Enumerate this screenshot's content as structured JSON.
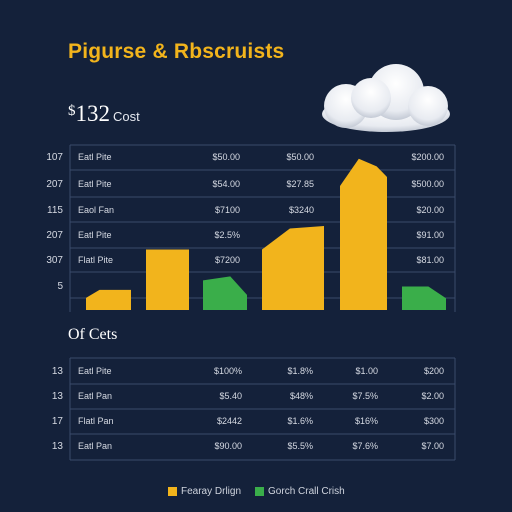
{
  "title": "Pigurse & Rbscruists",
  "cost": {
    "value": "132",
    "currency": "$",
    "label": "Cost"
  },
  "sub_title": "Of Cets",
  "colors": {
    "background": "#14213a",
    "accent": "#f2b41c",
    "green": "#3aae4a",
    "grid": "#3a4a6b"
  },
  "chart_data": {
    "type": "bar",
    "categories": [
      "",
      "",
      "",
      "",
      "",
      ""
    ],
    "series": [
      {
        "color": "#f2b41c",
        "values": [
          0.12,
          0.36,
          null,
          0.5,
          0.9,
          null
        ]
      },
      {
        "color": "#3aae4a",
        "values": [
          null,
          null,
          0.2,
          null,
          null,
          0.14
        ]
      }
    ],
    "ylim": [
      0,
      1
    ],
    "grid": true
  },
  "top_table": {
    "row_numbers": [
      "107",
      "207",
      "115",
      "207",
      "307",
      "5"
    ],
    "row_labels": [
      "Eatl Pite",
      "Eatl Pite",
      "Eaol Fan",
      "Eatl Pite",
      "Flatl Pite",
      ""
    ],
    "col_a": [
      "$50.00",
      "$54.00",
      "$7100",
      "$2.5%",
      "$7200",
      ""
    ],
    "col_b": [
      "$50.00",
      "$27.85",
      "$3240",
      "",
      "",
      ""
    ],
    "col_c": [
      "$200.00",
      "$500.00",
      "$20.00",
      "$91.00",
      "$81.00",
      ""
    ]
  },
  "bottom_table": {
    "rows": [
      {
        "num": "13",
        "label": "Eatl Pite",
        "c1": "$100%",
        "c2": "$1.8%",
        "c3": "$1.00",
        "c4": "$200"
      },
      {
        "num": "13",
        "label": "Eatl Pan",
        "c1": "$5.40",
        "c2": "$48%",
        "c3": "$7.5%",
        "c4": "$2.00"
      },
      {
        "num": "17",
        "label": "Flatl Pan",
        "c1": "$2442",
        "c2": "$1.6%",
        "c3": "$16%",
        "c4": "$300"
      },
      {
        "num": "13",
        "label": "Eatl Pan",
        "c1": "$90.00",
        "c2": "$5.5%",
        "c3": "$7.6%",
        "c4": "$7.00"
      }
    ]
  },
  "legend": [
    {
      "label": "Fearay Drlign",
      "color": "#f2b41c"
    },
    {
      "label": "Gorch Crall Crish",
      "color": "#3aae4a"
    }
  ]
}
